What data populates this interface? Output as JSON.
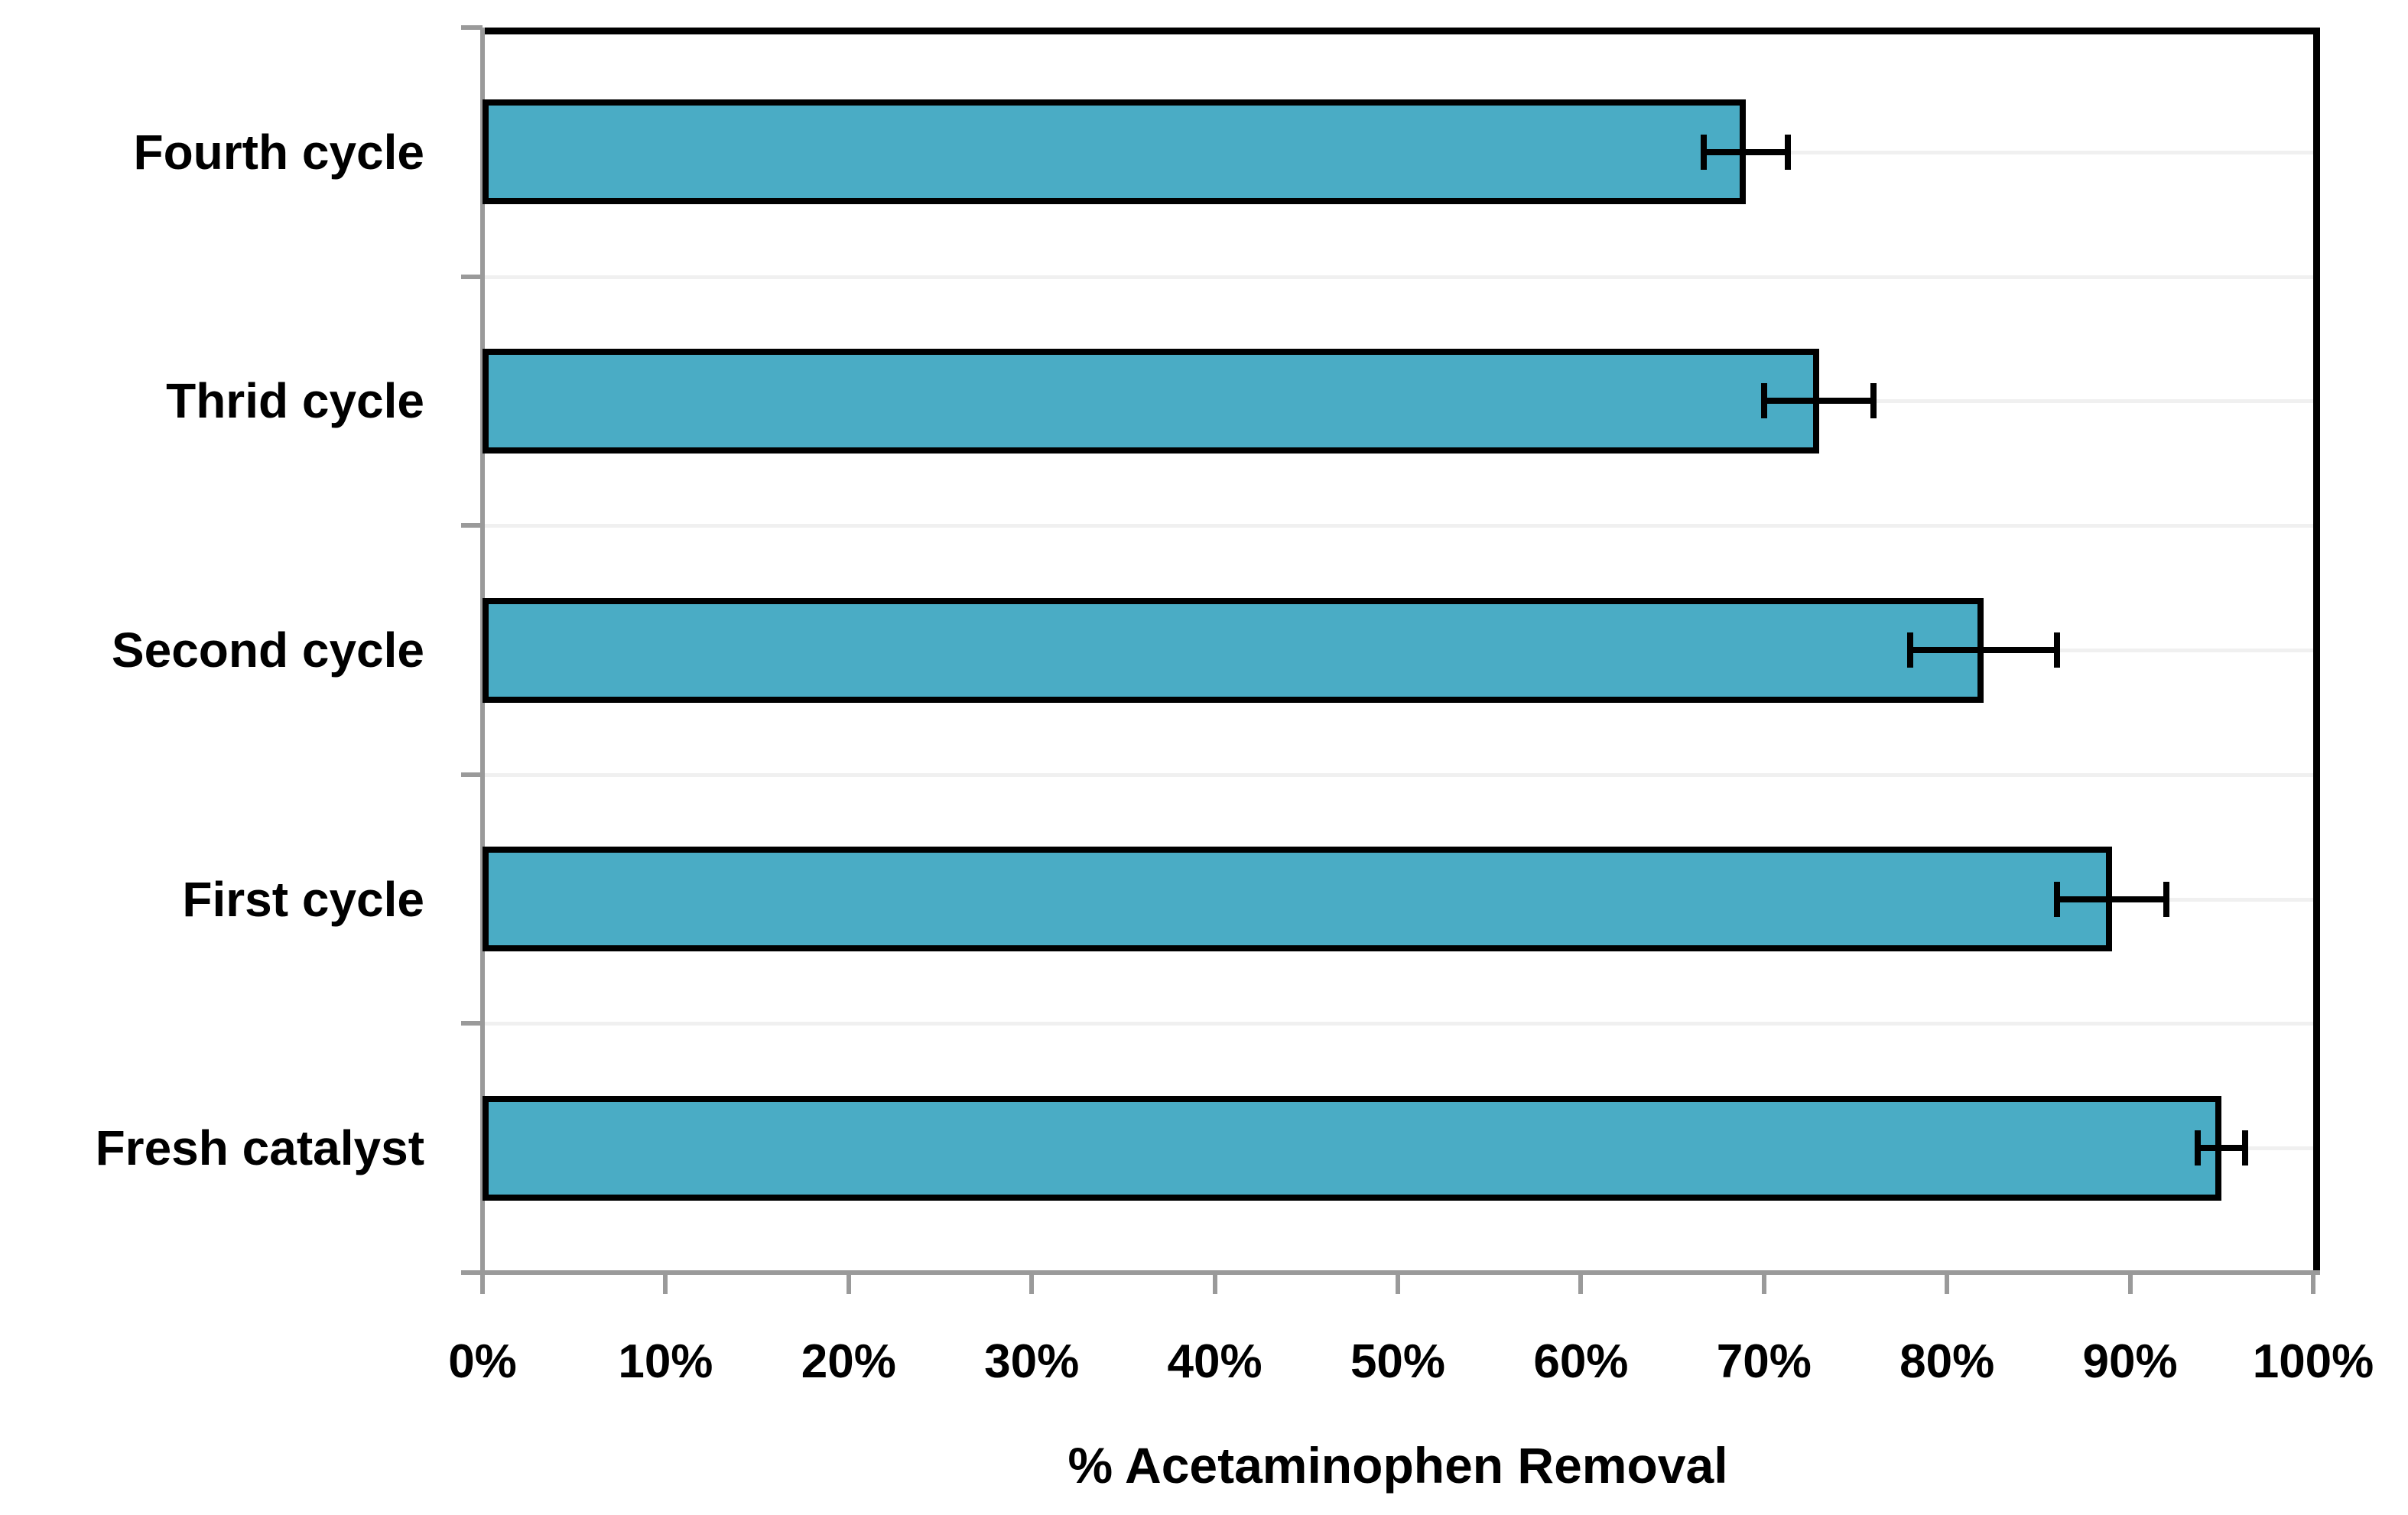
{
  "chart_data": {
    "type": "bar",
    "orientation": "horizontal",
    "title": "",
    "xlabel": "% Acetaminophen Removal",
    "ylabel": "",
    "xlim": [
      0,
      100
    ],
    "grid": "light horizontal lines at half-category steps",
    "legend": "none",
    "categories": [
      "Fourth cycle",
      "Thrid cycle",
      "Second cycle",
      "First cycle",
      "Fresh catalyst"
    ],
    "values": [
      69,
      73,
      82,
      89,
      95
    ],
    "error_bars": [
      2.3,
      3,
      4,
      3,
      1.3
    ],
    "x_tick_labels": [
      "0%",
      "10%",
      "20%",
      "30%",
      "40%",
      "50%",
      "60%",
      "70%",
      "80%",
      "90%",
      "100%"
    ],
    "x_tick_values": [
      0,
      10,
      20,
      30,
      40,
      50,
      60,
      70,
      80,
      90,
      100
    ],
    "bar_fill_color": "#4AACC5",
    "bar_border_color": "#000000",
    "error_bar_color": "#000000",
    "axis_line_color": "#9a9a9a",
    "gridline_color": "#f0f0f0",
    "background_color": "#ffffff"
  }
}
